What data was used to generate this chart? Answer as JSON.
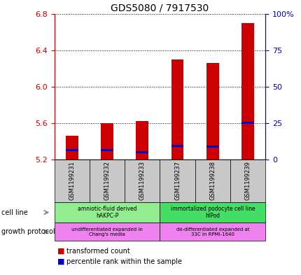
{
  "title": "GDS5080 / 7917530",
  "samples": [
    "GSM1199231",
    "GSM1199232",
    "GSM1199233",
    "GSM1199237",
    "GSM1199238",
    "GSM1199239"
  ],
  "red_values": [
    5.46,
    5.6,
    5.62,
    6.3,
    6.26,
    6.7
  ],
  "blue_values": [
    5.3,
    5.3,
    5.28,
    5.35,
    5.34,
    5.6
  ],
  "base_value": 5.2,
  "ylim": [
    5.2,
    6.8
  ],
  "yticks": [
    5.2,
    5.6,
    6.0,
    6.4,
    6.8
  ],
  "cell_line_groups": [
    {
      "label": "amniotic-fluid derived\nhAKPC-P",
      "start": 0,
      "end": 3,
      "color": "#90EE90"
    },
    {
      "label": "immortalized podocyte cell line\nhIPod",
      "start": 3,
      "end": 6,
      "color": "#44DD66"
    }
  ],
  "growth_protocol_groups": [
    {
      "label": "undifferentiated expanded in\nChang's media",
      "start": 0,
      "end": 3,
      "color": "#EE82EE"
    },
    {
      "label": "de-differentiated expanded at\n33C in RPMI-1640",
      "start": 3,
      "end": 6,
      "color": "#EE82EE"
    }
  ],
  "bar_width": 0.35,
  "red_color": "#CC0000",
  "blue_color": "#0000CC",
  "left_axis_color": "#CC0000",
  "right_axis_color": "#0000CC",
  "sample_box_color": "#C8C8C8"
}
